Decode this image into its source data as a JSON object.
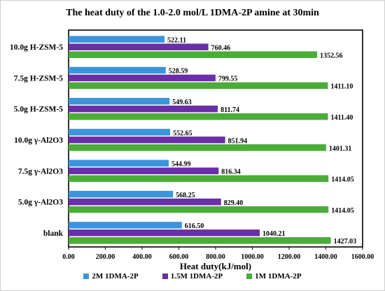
{
  "chart_data": {
    "type": "bar",
    "orientation": "horizontal",
    "title": "The heat duty of the 1.0-2.0 mol/L 1DMA-2P amine at 30min",
    "xlabel": "Heat duty(kJ/mol)",
    "ylabel": "",
    "xlim": [
      0,
      1600
    ],
    "xticks": [
      "0.00",
      "200.00",
      "400.00",
      "600.00",
      "800.00",
      "1000.00",
      "1200.00",
      "1400.00",
      "1600.00"
    ],
    "grid": false,
    "legend_position": "bottom",
    "categories": [
      "10.0g H-ZSM-5",
      "7.5g H-ZSM-5",
      "5.0g H-ZSM-5",
      "10.0g γ-Al2O3",
      "7.5g γ-Al2O3",
      "5.0g γ-Al2O3",
      "blank"
    ],
    "series": [
      {
        "name": "2M 1DMA-2P",
        "color": "#3a95dc",
        "values": [
          522.11,
          528.59,
          549.63,
          552.65,
          544.99,
          568.25,
          616.5
        ],
        "labels": [
          "522.11",
          "528.59",
          "549.63",
          "552.65",
          "544.99",
          "568.25",
          "616.50"
        ]
      },
      {
        "name": "1.5M 1DMA-2P",
        "color": "#6a2ea8",
        "values": [
          760.46,
          799.55,
          811.74,
          851.94,
          816.34,
          829.4,
          1040.21
        ],
        "labels": [
          "760.46",
          "799.55",
          "811.74",
          "851.94",
          "816.34",
          "829.40",
          "1040.21"
        ]
      },
      {
        "name": "1M 1DMA-2P",
        "color": "#4aad38",
        "values": [
          1352.56,
          1411.1,
          1411.4,
          1401.31,
          1414.05,
          1414.05,
          1427.03
        ],
        "labels": [
          "1352.56",
          "1411.10",
          "1411.40",
          "1401.31",
          "1414.05",
          "1414.05",
          "1427.03"
        ]
      }
    ]
  }
}
